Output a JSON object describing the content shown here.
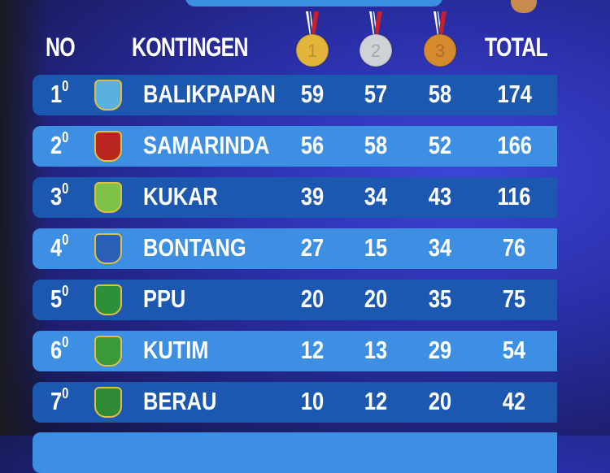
{
  "header": {
    "no": "NO",
    "kontingen": "KONTINGEN",
    "total": "TOTAL",
    "medals": [
      {
        "icon": "gold-medal-icon",
        "digit": "1",
        "color": "#e2b53a"
      },
      {
        "icon": "silver-medal-icon",
        "digit": "2",
        "color": "#cfd2d6"
      },
      {
        "icon": "bronze-medal-icon",
        "digit": "3",
        "color": "#d58a2e"
      }
    ]
  },
  "colors": {
    "row_dark": "#1c58b0",
    "row_light": "#3d8fe4"
  },
  "rows": [
    {
      "rank": "1",
      "sup": "0",
      "name": "BALIKPAPAN",
      "gold": "59",
      "silver": "57",
      "bronze": "58",
      "total": "174",
      "logo": "#5ab0e0"
    },
    {
      "rank": "2",
      "sup": "0",
      "name": "SAMARINDA",
      "gold": "56",
      "silver": "58",
      "bronze": "52",
      "total": "166",
      "logo": "#b8261d"
    },
    {
      "rank": "3",
      "sup": "0",
      "name": "KUKAR",
      "gold": "39",
      "silver": "34",
      "bronze": "43",
      "total": "116",
      "logo": "#7fc24a"
    },
    {
      "rank": "4",
      "sup": "0",
      "name": "BONTANG",
      "gold": "27",
      "silver": "15",
      "bronze": "34",
      "total": "76",
      "logo": "#2a5fb8"
    },
    {
      "rank": "5",
      "sup": "0",
      "name": "PPU",
      "gold": "20",
      "silver": "20",
      "bronze": "35",
      "total": "75",
      "logo": "#2e8f3a"
    },
    {
      "rank": "6",
      "sup": "0",
      "name": "KUTIM",
      "gold": "12",
      "silver": "13",
      "bronze": "29",
      "total": "54",
      "logo": "#3a9a3a"
    },
    {
      "rank": "7",
      "sup": "0",
      "name": "BERAU",
      "gold": "10",
      "silver": "12",
      "bronze": "20",
      "total": "42",
      "logo": "#2f8a35"
    }
  ]
}
